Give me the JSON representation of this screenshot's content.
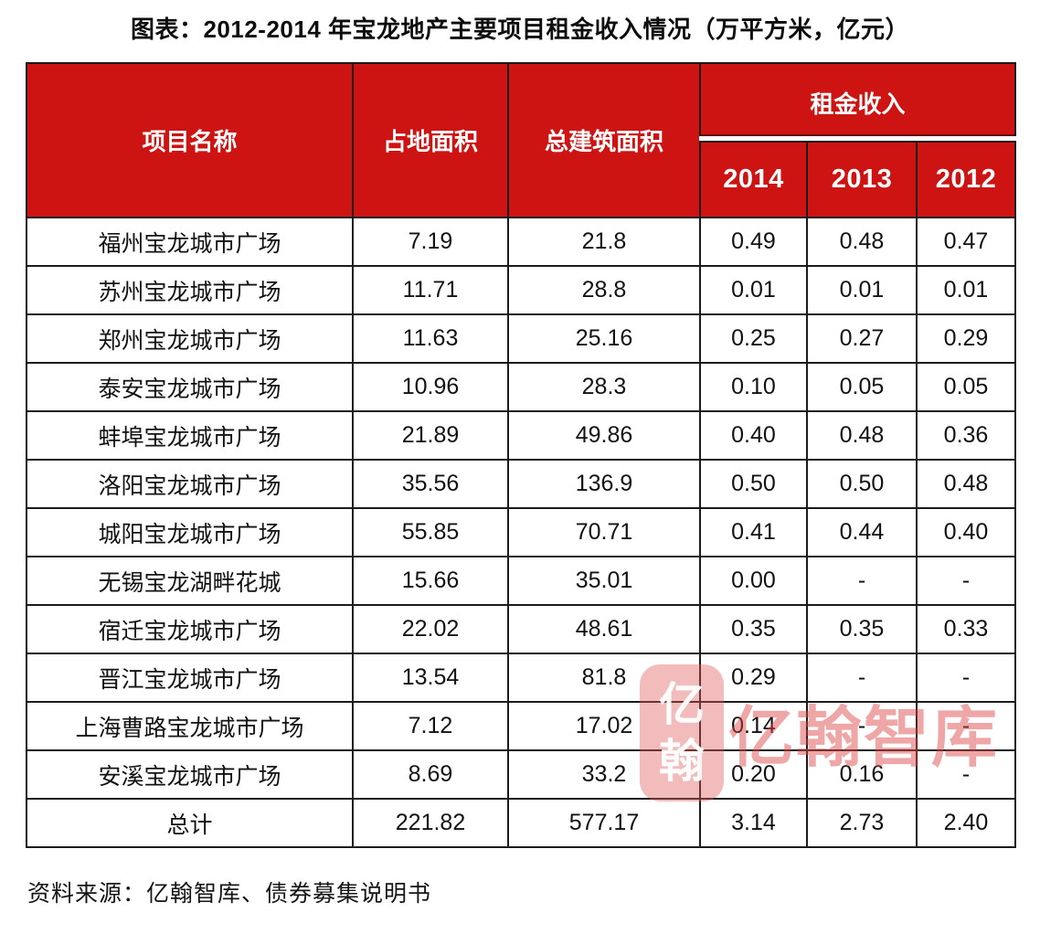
{
  "title": "图表：2012-2014 年宝龙地产主要项目租金收入情况（万平方米，亿元）",
  "chart_data": {
    "type": "table",
    "title": "2012-2014 年宝龙地产主要项目租金收入情况（万平方米，亿元）",
    "header": {
      "project": "项目名称",
      "land_area": "占地面积",
      "gfa": "总建筑面积",
      "rental": "租金收入",
      "years": [
        "2014",
        "2013",
        "2012"
      ]
    },
    "rows": [
      [
        "福州宝龙城市广场",
        "7.19",
        "21.8",
        "0.49",
        "0.48",
        "0.47"
      ],
      [
        "苏州宝龙城市广场",
        "11.71",
        "28.8",
        "0.01",
        "0.01",
        "0.01"
      ],
      [
        "郑州宝龙城市广场",
        "11.63",
        "25.16",
        "0.25",
        "0.27",
        "0.29"
      ],
      [
        "泰安宝龙城市广场",
        "10.96",
        "28.3",
        "0.10",
        "0.05",
        "0.05"
      ],
      [
        "蚌埠宝龙城市广场",
        "21.89",
        "49.86",
        "0.40",
        "0.48",
        "0.36"
      ],
      [
        "洛阳宝龙城市广场",
        "35.56",
        "136.9",
        "0.50",
        "0.50",
        "0.48"
      ],
      [
        "城阳宝龙城市广场",
        "55.85",
        "70.71",
        "0.41",
        "0.44",
        "0.40"
      ],
      [
        "无锡宝龙湖畔花城",
        "15.66",
        "35.01",
        "0.00",
        "-",
        "-"
      ],
      [
        "宿迁宝龙城市广场",
        "22.02",
        "48.61",
        "0.35",
        "0.35",
        "0.33"
      ],
      [
        "晋江宝龙城市广场",
        "13.54",
        "81.8",
        "0.29",
        "-",
        "-"
      ],
      [
        "上海曹路宝龙城市广场",
        "7.12",
        "17.02",
        "0.14",
        "-",
        "-"
      ],
      [
        "安溪宝龙城市广场",
        "8.69",
        "33.2",
        "0.20",
        "0.16",
        "-"
      ],
      [
        "总计",
        "221.82",
        "577.17",
        "3.14",
        "2.73",
        "2.40"
      ]
    ]
  },
  "source": "资料来源：亿翰智库、债券募集说明书",
  "watermark": {
    "seal_top_char": "亿",
    "seal_bottom_char": "翰",
    "text": "亿翰智库"
  },
  "colors": {
    "header_red": "#CE1313",
    "border": "#1B1B1B",
    "watermark_red": "#DB4646"
  }
}
